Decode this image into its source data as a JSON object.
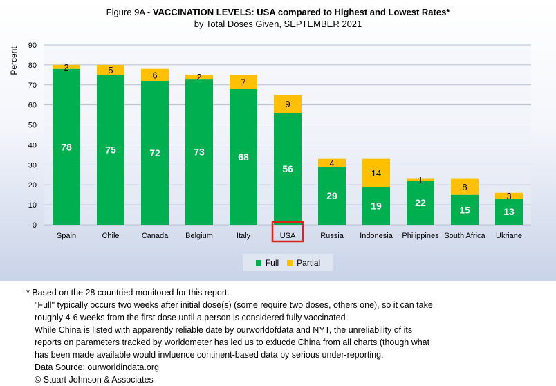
{
  "chart_data": {
    "type": "bar",
    "stacked": true,
    "title_prefix": "Figure 9A - ",
    "title_bold": "VACCINATION LEVELS:  USA compared to Highest and Lowest Rates*",
    "subtitle": "by Total Doses Given, SEPTEMBER 2021",
    "ylabel": "Percent",
    "xlabel": "",
    "ylim": [
      0,
      90
    ],
    "yticks": [
      0,
      10,
      20,
      30,
      40,
      50,
      60,
      70,
      80,
      90
    ],
    "grid": true,
    "legend_position": "bottom",
    "categories": [
      "Spain",
      "Chile",
      "Canada",
      "Belgium",
      "Italy",
      "USA",
      "Russia",
      "Indonesia",
      "Philippines",
      "South Africa",
      "Ukriane"
    ],
    "highlighted_category": "USA",
    "series": [
      {
        "name": "Full",
        "color": "#00b050",
        "label_color": "#ffffff",
        "values": [
          78,
          75,
          72,
          73,
          68,
          56,
          29,
          19,
          22,
          15,
          13
        ]
      },
      {
        "name": "Partial",
        "color": "#ffc000",
        "label_color": "#000000",
        "values": [
          2,
          5,
          6,
          2,
          7,
          9,
          4,
          14,
          1,
          8,
          3
        ]
      }
    ]
  },
  "footnotes": {
    "asterisk": "* ",
    "line1": "Based on the 28 countried monitored for this report.",
    "line2": "\"Full\" typically occurs two weeks after initial dose(s) (some require two doses, others one),  so it can take",
    "line3": "roughly 4-6 weeks from the first dose until a person is considered fully vaccinated",
    "line4": "While China is listed with apparently reliable date by ourworldofdata and NYT, the unreliability of its",
    "line5": "reports on parameters tracked by worldometer has led us to exlucde China from all charts (though what",
    "line6": "has been made available would invluence continent-based data by serious under-reporting.",
    "line7": "Data Source:  ourworldindata.org",
    "line8": "© Stuart Johnson & Associates"
  },
  "colors": {
    "grid": "#b7bfcf",
    "highlight_box": "#e0201a"
  }
}
